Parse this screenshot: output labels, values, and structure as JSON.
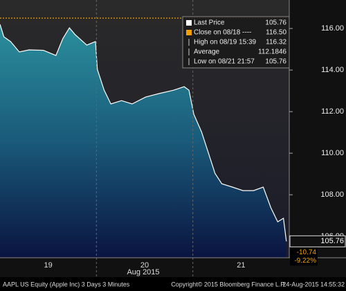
{
  "chart_data": {
    "type": "area",
    "x": [
      0.0,
      0.04,
      0.11,
      0.2,
      0.3,
      0.45,
      0.58,
      0.65,
      0.72,
      0.78,
      0.9,
      0.99,
      1.01,
      1.08,
      1.15,
      1.26,
      1.37,
      1.51,
      1.65,
      1.8,
      1.91,
      1.96,
      2.01,
      2.09,
      2.16,
      2.23,
      2.3,
      2.41,
      2.52,
      2.63,
      2.73,
      2.81,
      2.88,
      2.94,
      2.97
    ],
    "series": [
      {
        "name": "Last Price",
        "color": "#ffffff",
        "values": [
          116.2,
          115.6,
          115.37,
          114.87,
          114.97,
          114.95,
          114.7,
          115.5,
          116.03,
          115.7,
          115.2,
          115.37,
          114.03,
          113.03,
          112.37,
          112.53,
          112.37,
          112.7,
          112.87,
          113.03,
          113.2,
          113.03,
          111.87,
          111.03,
          110.03,
          109.03,
          108.53,
          108.37,
          108.2,
          108.2,
          108.37,
          107.37,
          106.7,
          106.87,
          105.76
        ]
      }
    ],
    "xlim": [
      0,
      3
    ],
    "xticks": [
      {
        "value": 0.5,
        "label": "19"
      },
      {
        "value": 1.5,
        "label": "20"
      },
      {
        "value": 2.5,
        "label": "21"
      }
    ],
    "day_breaks": [
      1,
      2
    ],
    "x_axis_label": "Aug 2015",
    "ylim": [
      104.97,
      117.37
    ],
    "yticks": [
      {
        "value": 106,
        "label": "106.00"
      },
      {
        "value": 108,
        "label": "108.00"
      },
      {
        "value": 110,
        "label": "110.00"
      },
      {
        "value": 112,
        "label": "112.00"
      },
      {
        "value": 114,
        "label": "114.00"
      },
      {
        "value": 116,
        "label": "116.00"
      }
    ],
    "close_line": 116.5,
    "close_color": "#f0a000",
    "last_price_label": "105.76",
    "change": "-10.74",
    "change_pct": "-9.22%",
    "legend": [
      {
        "label": "Last Price",
        "value": "105.76"
      },
      {
        "label": "Close on 08/18 ----",
        "value": "116.50"
      },
      {
        "label": "High on 08/19 15:39",
        "value": "116.32"
      },
      {
        "label": "Average",
        "value": "112.1846"
      },
      {
        "label": "Low on 08/21 21:57",
        "value": "105.76"
      }
    ],
    "footer": {
      "left": "AAPL US Equity (Apple Inc) 3 Days 3 Minutes",
      "center": "Copyright© 2015 Bloomberg Finance L.P.",
      "right": "24-Aug-2015 14:55:32"
    }
  }
}
